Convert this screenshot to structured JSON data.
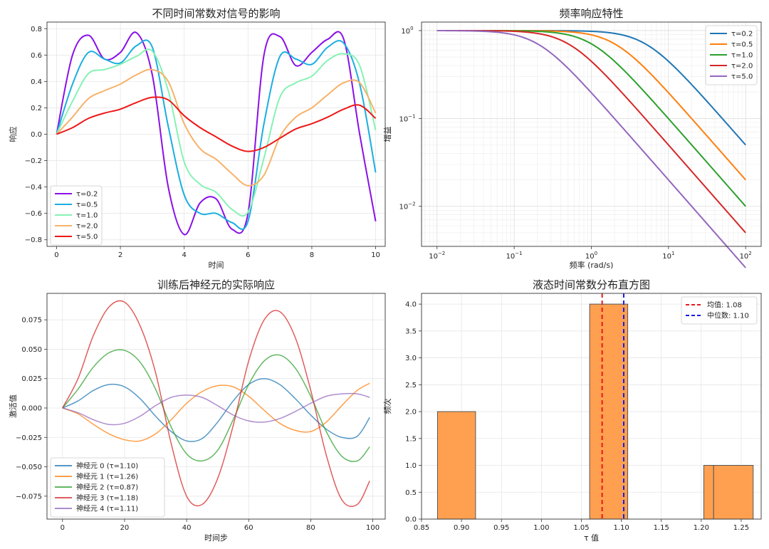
{
  "chart_data": [
    {
      "type": "line",
      "title": "不同时间常数对信号的影响",
      "xlabel": "时间",
      "ylabel": "响应",
      "xlim": [
        -0.3,
        10.3
      ],
      "ylim": [
        -0.85,
        0.85
      ],
      "xticks": [
        0,
        2,
        4,
        6,
        8,
        10
      ],
      "yticks": [
        -0.8,
        -0.6,
        -0.4,
        -0.2,
        0.0,
        0.2,
        0.4,
        0.6,
        0.8
      ],
      "ytick_labels": [
        "−0.8",
        "−0.6",
        "−0.4",
        "−0.2",
        "0.0",
        "0.2",
        "0.4",
        "0.6",
        "0.8"
      ],
      "grid": true,
      "legend": "lower-left",
      "x": [
        0,
        0.5,
        1,
        1.5,
        2,
        2.5,
        3,
        3.5,
        4,
        4.5,
        5,
        5.5,
        6,
        6.5,
        7,
        7.5,
        8,
        8.5,
        9,
        9.5,
        10
      ],
      "series": [
        {
          "name": "τ=0.2",
          "color": "#8a10e8",
          "values": [
            0.0,
            0.6,
            0.75,
            0.57,
            0.62,
            0.77,
            0.45,
            -0.4,
            -0.76,
            -0.52,
            -0.49,
            -0.72,
            -0.6,
            0.6,
            0.74,
            0.52,
            0.62,
            0.72,
            0.72,
            0.0,
            -0.66
          ]
        },
        {
          "name": "τ=0.5",
          "color": "#1aaee0",
          "values": [
            0.0,
            0.38,
            0.62,
            0.57,
            0.54,
            0.67,
            0.66,
            0.06,
            -0.46,
            -0.6,
            -0.6,
            -0.67,
            -0.66,
            0.08,
            0.59,
            0.57,
            0.53,
            0.66,
            0.69,
            0.38,
            -0.29
          ]
        },
        {
          "name": "τ=1.0",
          "color": "#86f2b4",
          "values": [
            0.0,
            0.25,
            0.46,
            0.49,
            0.53,
            0.59,
            0.63,
            0.33,
            -0.21,
            -0.38,
            -0.44,
            -0.57,
            -0.59,
            -0.18,
            0.28,
            0.39,
            0.44,
            0.56,
            0.61,
            0.52,
            0.03
          ]
        },
        {
          "name": "τ=2.0",
          "color": "#f7b26a",
          "values": [
            0.0,
            0.13,
            0.27,
            0.33,
            0.38,
            0.45,
            0.49,
            0.4,
            0.08,
            -0.11,
            -0.19,
            -0.3,
            -0.39,
            -0.31,
            -0.02,
            0.13,
            0.2,
            0.3,
            0.39,
            0.39,
            0.16
          ]
        },
        {
          "name": "τ=5.0",
          "color": "#ee1818",
          "values": [
            0.0,
            0.05,
            0.12,
            0.16,
            0.19,
            0.24,
            0.28,
            0.26,
            0.14,
            0.05,
            -0.02,
            -0.09,
            -0.13,
            -0.1,
            -0.03,
            0.04,
            0.08,
            0.13,
            0.19,
            0.22,
            0.12
          ]
        }
      ]
    },
    {
      "type": "line",
      "title": "频率响应特性",
      "xlabel": "频率 (rad/s)",
      "ylabel": "增益",
      "xscale": "log",
      "yscale": "log",
      "xlim": [
        0.0063,
        159
      ],
      "ylim": [
        0.0035,
        1.25
      ],
      "xticks": [
        0.01,
        0.1,
        1,
        10,
        100
      ],
      "xtick_labels": [
        [
          "10",
          "−2"
        ],
        [
          "10",
          "−1"
        ],
        [
          "10",
          "0"
        ],
        [
          "10",
          "1"
        ],
        [
          "10",
          "2"
        ]
      ],
      "yticks": [
        0.01,
        0.1,
        1
      ],
      "ytick_labels": [
        [
          "10",
          "−2"
        ],
        [
          "10",
          "−1"
        ],
        [
          "10",
          "0"
        ]
      ],
      "grid": true,
      "legend": "upper-right",
      "series": [
        {
          "name": "τ=0.2",
          "color": "#1f77b4",
          "tau": 0.2
        },
        {
          "name": "τ=0.5",
          "color": "#ff7f0e",
          "tau": 0.5
        },
        {
          "name": "τ=1.0",
          "color": "#2ca02c",
          "tau": 1.0
        },
        {
          "name": "τ=2.0",
          "color": "#d62728",
          "tau": 2.0
        },
        {
          "name": "τ=5.0",
          "color": "#9467bd",
          "tau": 5.0
        }
      ]
    },
    {
      "type": "line",
      "title": "训练后神经元的实际响应",
      "xlabel": "时间步",
      "ylabel": "激活值",
      "xlim": [
        -5,
        104
      ],
      "ylim": [
        -0.0945,
        0.0975
      ],
      "xticks": [
        0,
        20,
        40,
        60,
        80,
        100
      ],
      "yticks": [
        -0.075,
        -0.05,
        -0.025,
        0.0,
        0.025,
        0.05,
        0.075
      ],
      "ytick_labels": [
        "−0.075",
        "−0.050",
        "−0.025",
        "0.000",
        "0.025",
        "0.050",
        "0.075"
      ],
      "grid": true,
      "legend": "lower-left",
      "x": [
        0,
        5,
        10,
        15,
        20,
        25,
        30,
        35,
        40,
        45,
        50,
        55,
        60,
        65,
        70,
        75,
        80,
        85,
        90,
        95,
        99
      ],
      "series": [
        {
          "name": "神经元 0 (τ=1.10)",
          "color": "#1f77b4",
          "values": [
            0.0,
            0.006,
            0.015,
            0.02,
            0.018,
            0.008,
            -0.007,
            -0.02,
            -0.028,
            -0.026,
            -0.012,
            0.006,
            0.02,
            0.025,
            0.02,
            0.008,
            -0.006,
            -0.018,
            -0.025,
            -0.024,
            -0.008
          ]
        },
        {
          "name": "神经元 1 (τ=1.26)",
          "color": "#ff7f0e",
          "values": [
            0.0,
            -0.005,
            -0.014,
            -0.022,
            -0.027,
            -0.028,
            -0.022,
            -0.01,
            0.004,
            0.014,
            0.019,
            0.018,
            0.01,
            -0.002,
            -0.013,
            -0.019,
            -0.02,
            -0.012,
            0.002,
            0.015,
            0.021
          ]
        },
        {
          "name": "神经元 2 (τ=0.87)",
          "color": "#2ca02c",
          "values": [
            0.0,
            0.016,
            0.035,
            0.047,
            0.049,
            0.039,
            0.016,
            -0.016,
            -0.039,
            -0.045,
            -0.036,
            -0.01,
            0.02,
            0.04,
            0.045,
            0.034,
            0.01,
            -0.02,
            -0.041,
            -0.045,
            -0.033
          ]
        },
        {
          "name": "神经元 3 (τ=1.18)",
          "color": "#d62728",
          "values": [
            0.0,
            0.025,
            0.062,
            0.086,
            0.09,
            0.07,
            0.03,
            -0.03,
            -0.075,
            -0.082,
            -0.06,
            -0.015,
            0.04,
            0.075,
            0.082,
            0.06,
            0.015,
            -0.04,
            -0.078,
            -0.082,
            -0.062
          ]
        },
        {
          "name": "神经元 4 (τ=1.11)",
          "color": "#9467bd",
          "values": [
            0.0,
            -0.004,
            -0.01,
            -0.014,
            -0.013,
            -0.007,
            0.002,
            0.009,
            0.011,
            0.009,
            0.002,
            -0.006,
            -0.011,
            -0.012,
            -0.009,
            -0.003,
            0.004,
            0.01,
            0.012,
            0.012,
            0.009
          ]
        }
      ]
    },
    {
      "type": "bar",
      "title": "液态时间常数分布直方图",
      "xlabel": "τ 值",
      "ylabel": "频次",
      "xlim": [
        0.85,
        1.275
      ],
      "ylim": [
        0,
        4.2
      ],
      "xticks": [
        0.85,
        0.9,
        0.95,
        1.0,
        1.05,
        1.1,
        1.15,
        1.2,
        1.25
      ],
      "xtick_labels": [
        "0.85",
        "0.90",
        "0.95",
        "1.00",
        "1.05",
        "1.10",
        "1.15",
        "1.20",
        "1.25"
      ],
      "yticks": [
        0.0,
        0.5,
        1.0,
        1.5,
        2.0,
        2.5,
        3.0,
        3.5,
        4.0
      ],
      "ytick_labels": [
        "0.0",
        "0.5",
        "1.0",
        "1.5",
        "2.0",
        "2.5",
        "3.0",
        "3.5",
        "4.0"
      ],
      "grid": true,
      "legend": "upper-right",
      "bar_color": "#ffa050",
      "bins": [
        {
          "from": 0.87,
          "to": 0.9176,
          "count": 2
        },
        {
          "from": 0.9176,
          "to": 0.9652,
          "count": 0
        },
        {
          "from": 0.9652,
          "to": 1.0128,
          "count": 0
        },
        {
          "from": 1.0128,
          "to": 1.0604,
          "count": 0
        },
        {
          "from": 1.0604,
          "to": 1.108,
          "count": 4
        },
        {
          "from": 1.108,
          "to": 1.1556,
          "count": 0
        },
        {
          "from": 1.1556,
          "to": 1.2032,
          "count": 0
        },
        {
          "from": 1.2032,
          "to": 1.2155,
          "count": 1
        },
        {
          "from": 1.2155,
          "to": 1.265,
          "count": 1
        }
      ],
      "lines": [
        {
          "name": "均值: 1.08",
          "value": 1.076,
          "color": "#e8191b"
        },
        {
          "name": "中位数: 1.10",
          "value": 1.103,
          "color": "#1a1ae6"
        }
      ]
    }
  ]
}
